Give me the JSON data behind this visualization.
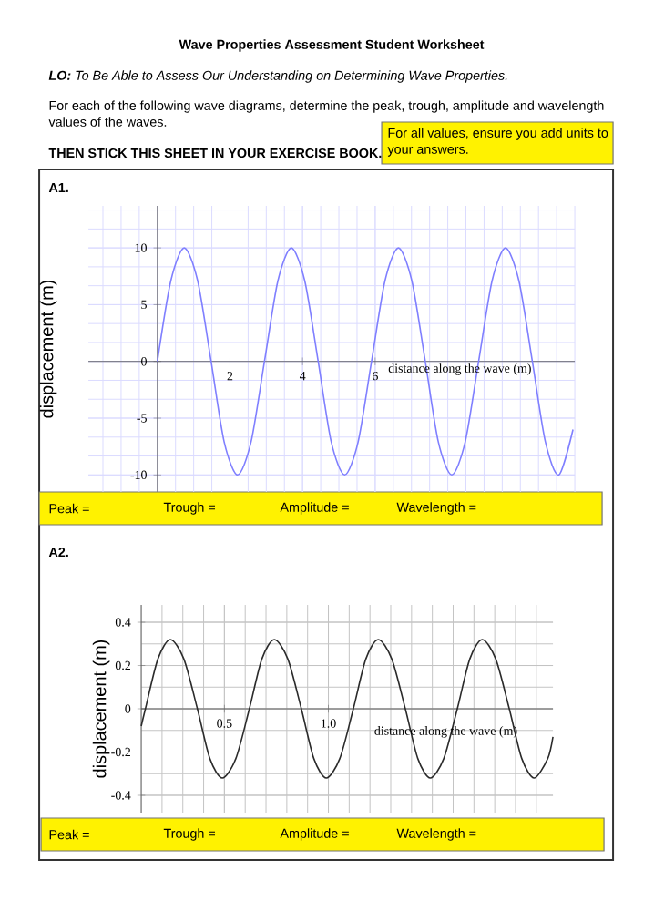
{
  "chart_data": [
    {
      "type": "line",
      "title": "Wave Properties Assessment Student Worksheet",
      "subtitle": "**LO:** To Be Able to Assess Our Understanding on Determining Wave Properties.",
      "annotations": [
        "For each of the following wave diagrams, determine the peak, trough, amplitude and wavelength values of the waves.",
        "For all values, ensure you add units to your answers.",
        "THEN STICK THIS SHEET IN YOUR EXERCISE BOOK.",
        "A1.",
        "Peak =",
        "Trough =",
        "Amplitude =",
        "Wavelength ="
      ],
      "xlabel": "distance along the wave (m)",
      "ylabel": "displacement (m)",
      "xlim": [
        -1.9,
        11.5
      ],
      "ylim": [
        -11.5,
        13.7
      ],
      "xticks": [
        2,
        4,
        6
      ],
      "yticks": [
        -10,
        -5,
        0,
        5,
        10
      ],
      "grid": true,
      "series": [
        {
          "color": "#7f7fff",
          "x": [
            0,
            0.37,
            0.74,
            1.11,
            1.48,
            1.84,
            2.21,
            2.58,
            2.95,
            3.32,
            3.69,
            4.06,
            4.43,
            4.79,
            5.16,
            5.53,
            5.9,
            6.27,
            6.64,
            7.01,
            7.38,
            7.74,
            8.11,
            8.48,
            8.85,
            9.22,
            9.59,
            9.96,
            10.33,
            10.69,
            11.06,
            11.45
          ],
          "values": [
            0,
            7.1,
            10,
            7.1,
            0,
            -7.1,
            -10,
            -7.1,
            0,
            7.1,
            10,
            7.1,
            0,
            -7.1,
            -10,
            -7.1,
            0,
            7.1,
            10,
            7.1,
            0,
            -7.1,
            -10,
            -7.1,
            0,
            7.1,
            10,
            7.1,
            0,
            -7.1,
            -10,
            -6
          ]
        }
      ]
    },
    {
      "type": "line",
      "annotations": [
        "A2.",
        "Peak =",
        "Trough =",
        "Amplitude =",
        "Wavelength ="
      ],
      "xlabel": "distance along the wave (m)",
      "ylabel": "displacement (m)",
      "xlim": [
        0.1,
        2.08
      ],
      "ylim": [
        -0.48,
        0.48
      ],
      "xticks": [
        0.5,
        {
          "value": 1.0,
          "label": "1.0"
        }
      ],
      "yticks": [
        -0.4,
        -0.2,
        0,
        0.2,
        0.4
      ],
      "grid": true,
      "series": [
        {
          "color": "#2b2b2b",
          "x": [
            0.1,
            0.12,
            0.18,
            0.24,
            0.305,
            0.37,
            0.43,
            0.49,
            0.555,
            0.62,
            0.68,
            0.74,
            0.805,
            0.87,
            0.93,
            0.99,
            1.055,
            1.12,
            1.18,
            1.24,
            1.305,
            1.37,
            1.43,
            1.49,
            1.555,
            1.62,
            1.68,
            1.74,
            1.805,
            1.87,
            1.93,
            1.99,
            2.055,
            2.08
          ],
          "values": [
            -0.08,
            0,
            0.23,
            0.32,
            0.23,
            0,
            -0.23,
            -0.32,
            -0.23,
            0,
            0.23,
            0.32,
            0.23,
            0,
            -0.23,
            -0.32,
            -0.23,
            0,
            0.23,
            0.32,
            0.23,
            0,
            -0.23,
            -0.32,
            -0.23,
            0,
            0.23,
            0.32,
            0.23,
            0,
            -0.23,
            -0.32,
            -0.23,
            -0.13
          ]
        }
      ]
    }
  ]
}
